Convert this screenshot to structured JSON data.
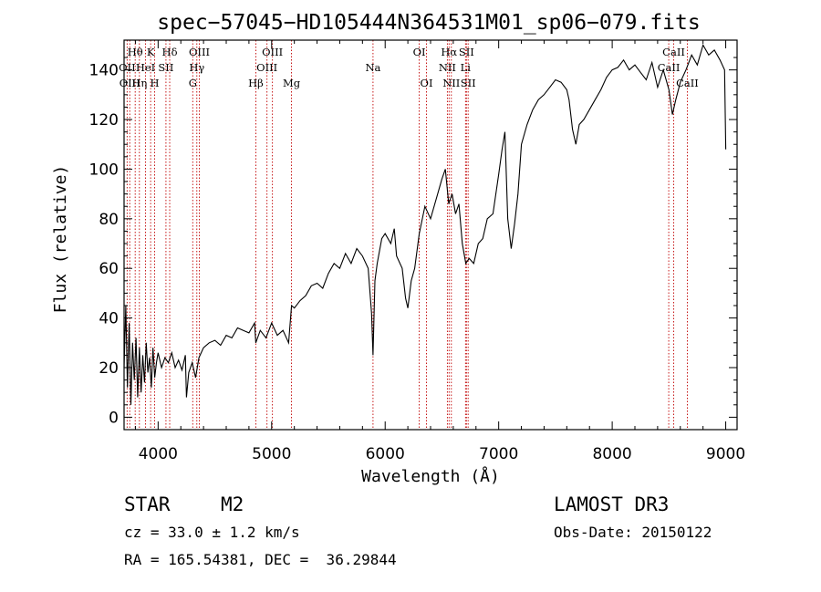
{
  "chart_data": {
    "type": "line",
    "title": "spec−57045−HD105444N364531M01_sp06−079.fits",
    "xlabel": "Wavelength (Å)",
    "ylabel": "Flux (relative)",
    "xlim": [
      3700,
      9100
    ],
    "ylim": [
      -5,
      152
    ],
    "x_ticks": [
      4000,
      5000,
      6000,
      7000,
      8000,
      9000
    ],
    "y_ticks": [
      0,
      20,
      40,
      60,
      80,
      100,
      120,
      140
    ],
    "grid": false,
    "series": [
      {
        "name": "flux",
        "x": [
          3700,
          3715,
          3730,
          3745,
          3760,
          3775,
          3790,
          3805,
          3820,
          3835,
          3850,
          3865,
          3880,
          3895,
          3910,
          3925,
          3940,
          3955,
          3970,
          3985,
          4000,
          4030,
          4060,
          4090,
          4120,
          4150,
          4180,
          4210,
          4240,
          4250,
          4270,
          4300,
          4330,
          4360,
          4400,
          4450,
          4500,
          4550,
          4600,
          4650,
          4700,
          4750,
          4800,
          4850,
          4860,
          4900,
          4950,
          5000,
          5050,
          5100,
          5150,
          5175,
          5200,
          5250,
          5300,
          5350,
          5400,
          5450,
          5500,
          5550,
          5600,
          5650,
          5700,
          5750,
          5800,
          5850,
          5880,
          5893,
          5910,
          5930,
          5970,
          6000,
          6050,
          6080,
          6100,
          6150,
          6180,
          6200,
          6230,
          6260,
          6300,
          6350,
          6400,
          6450,
          6500,
          6530,
          6560,
          6590,
          6620,
          6650,
          6680,
          6710,
          6740,
          6780,
          6820,
          6860,
          6900,
          6950,
          7000,
          7030,
          7055,
          7080,
          7110,
          7140,
          7170,
          7200,
          7250,
          7300,
          7350,
          7400,
          7450,
          7500,
          7550,
          7600,
          7620,
          7650,
          7680,
          7710,
          7750,
          7800,
          7850,
          7900,
          7950,
          8000,
          8050,
          8100,
          8150,
          8200,
          8250,
          8300,
          8350,
          8400,
          8450,
          8500,
          8530,
          8560,
          8600,
          8650,
          8700,
          8750,
          8800,
          8850,
          8900,
          8950,
          8990,
          9000
        ],
        "y": [
          20,
          45,
          12,
          38,
          5,
          30,
          15,
          32,
          8,
          28,
          10,
          25,
          14,
          30,
          18,
          24,
          12,
          28,
          16,
          22,
          26,
          20,
          24,
          22,
          26,
          20,
          23,
          19,
          25,
          8,
          18,
          22,
          16,
          24,
          28,
          30,
          31,
          29,
          33,
          32,
          36,
          35,
          34,
          38,
          30,
          35,
          32,
          38,
          33,
          35,
          30,
          45,
          44,
          47,
          49,
          53,
          54,
          52,
          58,
          62,
          60,
          66,
          62,
          68,
          65,
          60,
          42,
          25,
          55,
          62,
          72,
          74,
          70,
          76,
          65,
          60,
          48,
          44,
          55,
          60,
          74,
          85,
          80,
          88,
          96,
          100,
          86,
          90,
          82,
          86,
          70,
          62,
          64,
          62,
          70,
          72,
          80,
          82,
          98,
          108,
          115,
          80,
          68,
          78,
          90,
          110,
          118,
          124,
          128,
          130,
          133,
          136,
          135,
          132,
          128,
          116,
          110,
          118,
          120,
          124,
          128,
          132,
          137,
          140,
          141,
          144,
          140,
          142,
          139,
          136,
          143,
          133,
          140,
          132,
          122,
          128,
          135,
          140,
          146,
          142,
          150,
          146,
          148,
          144,
          140,
          108
        ]
      }
    ],
    "spectral_lines": [
      {
        "label": "Hθ",
        "x": 3798,
        "row": 0
      },
      {
        "label": "OII",
        "x": 3727,
        "row": 1
      },
      {
        "label": "OIII",
        "x": 3750,
        "row": 2
      },
      {
        "label": "K",
        "x": 3934,
        "row": 0
      },
      {
        "label": "HeI",
        "x": 3889,
        "row": 1
      },
      {
        "label": "Hη",
        "x": 3835,
        "row": 2
      },
      {
        "label": "SII",
        "x": 4069,
        "row": 1
      },
      {
        "label": "H",
        "x": 3969,
        "row": 2
      },
      {
        "label": "Hδ",
        "x": 4102,
        "row": 0
      },
      {
        "label": "OIII",
        "x": 4363,
        "row": 0
      },
      {
        "label": "Hγ",
        "x": 4341,
        "row": 1
      },
      {
        "label": "G",
        "x": 4305,
        "row": 2
      },
      {
        "label": "Hβ",
        "x": 4861,
        "row": 2
      },
      {
        "label": "OIII",
        "x": 5007,
        "row": 0
      },
      {
        "label": "OIII",
        "x": 4959,
        "row": 1
      },
      {
        "label": "Mg",
        "x": 5175,
        "row": 2
      },
      {
        "label": "Na",
        "x": 5893,
        "row": 1
      },
      {
        "label": "OI",
        "x": 6300,
        "row": 0
      },
      {
        "label": "OI",
        "x": 6364,
        "row": 2
      },
      {
        "label": "Hα",
        "x": 6563,
        "row": 0
      },
      {
        "label": "NII",
        "x": 6548,
        "row": 1
      },
      {
        "label": "NII",
        "x": 6583,
        "row": 2
      },
      {
        "label": "SII",
        "x": 6716,
        "row": 0
      },
      {
        "label": "Li",
        "x": 6708,
        "row": 1
      },
      {
        "label": "SII",
        "x": 6731,
        "row": 2
      },
      {
        "label": "CaII",
        "x": 8542,
        "row": 0
      },
      {
        "label": "CaII",
        "x": 8498,
        "row": 1
      },
      {
        "label": "CaII",
        "x": 8662,
        "row": 2
      }
    ]
  },
  "info": {
    "object_class": "STAR",
    "subclass": "M2",
    "survey": "LAMOST DR3",
    "cz": "cz = 33.0 ± 1.2 km/s",
    "obs_date": "Obs-Date: 20150122",
    "coords": "RA = 165.54381, DEC =  36.29844"
  }
}
